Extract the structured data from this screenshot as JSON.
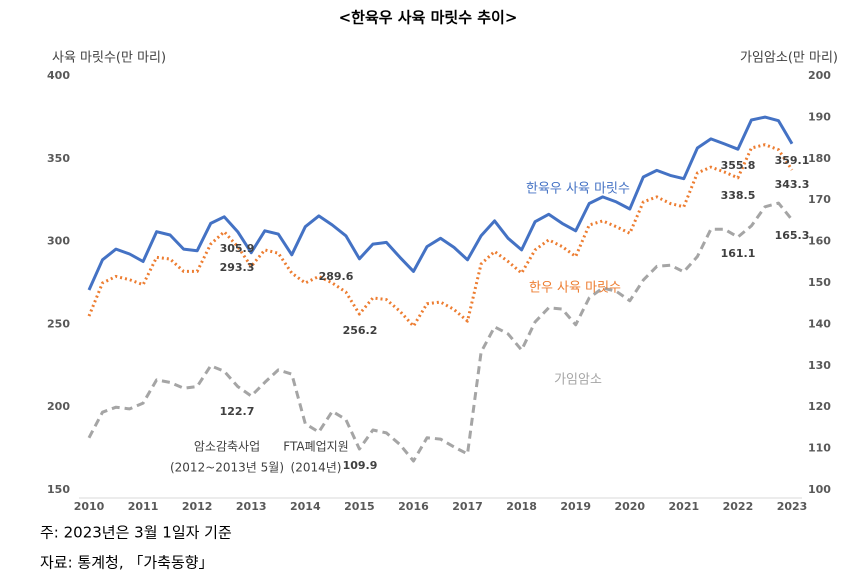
{
  "chart_data": {
    "type": "line",
    "title": "<한육우 사육 마릿수 추이>",
    "ylabel": "사육 마릿수(만 마리)",
    "y2label": "가임암소(만 마리)",
    "x": [
      2010,
      2010.25,
      2010.5,
      2010.75,
      2011,
      2011.25,
      2011.5,
      2011.75,
      2012,
      2012.25,
      2012.5,
      2012.75,
      2013,
      2013.25,
      2013.5,
      2013.75,
      2014,
      2014.25,
      2014.5,
      2014.75,
      2015,
      2015.25,
      2015.5,
      2015.75,
      2016,
      2016.25,
      2016.5,
      2016.75,
      2017,
      2017.25,
      2017.5,
      2017.75,
      2018,
      2018.25,
      2018.5,
      2018.75,
      2019,
      2019.25,
      2019.5,
      2019.75,
      2020,
      2020.25,
      2020.5,
      2020.75,
      2021,
      2021.25,
      2021.5,
      2021.75,
      2022,
      2022.25,
      2022.5,
      2022.75,
      2023
    ],
    "xlim": [
      2010,
      2023
    ],
    "xticks": [
      2010,
      2011,
      2012,
      2013,
      2014,
      2015,
      2016,
      2017,
      2018,
      2019,
      2020,
      2021,
      2022,
      2023
    ],
    "ylim": [
      150,
      400
    ],
    "yticks": [
      150,
      200,
      250,
      300,
      350,
      400
    ],
    "y2lim": [
      100,
      200
    ],
    "y2ticks": [
      100,
      110,
      120,
      130,
      140,
      150,
      160,
      170,
      180,
      190,
      200
    ],
    "grid": false,
    "series": [
      {
        "name": "한육우 사육 마릿수",
        "color": "#4472c4",
        "style": "solid",
        "values": [
          270.8,
          289,
          295.5,
          292.5,
          288,
          306,
          304,
          295.5,
          294.5,
          311,
          315,
          306,
          293.3,
          306.5,
          304.5,
          292,
          309,
          315.5,
          310,
          303.5,
          289.6,
          298.5,
          299.5,
          290.5,
          282,
          297,
          302,
          296.5,
          289,
          303.5,
          312.5,
          302,
          295,
          312,
          316.5,
          311,
          306.5,
          323,
          327,
          324,
          319.7,
          339,
          343,
          340,
          338,
          356.5,
          362,
          359,
          355.8,
          373.4,
          375.2,
          373,
          359.1
        ]
      },
      {
        "name": "한우 사육 마릿수",
        "color": "#ed7d31",
        "style": "dotted",
        "values": [
          255,
          275,
          279,
          277,
          274,
          290.5,
          289.5,
          282,
          282,
          298.5,
          305.9,
          297,
          285,
          295,
          293,
          281,
          275,
          279,
          275,
          269.5,
          256.2,
          266,
          265,
          258,
          249,
          262.5,
          263.5,
          259,
          252,
          286.5,
          294,
          288,
          281,
          295,
          301,
          297,
          291,
          310,
          312.5,
          309,
          305,
          324,
          327,
          323,
          321,
          341.5,
          345,
          342,
          338.5,
          356.5,
          358.5,
          355.5,
          343.3
        ]
      },
      {
        "name": "가임암소",
        "color": "#a5a5a5",
        "style": "dashed",
        "axis": "y2",
        "values": [
          112.6,
          118.8,
          120,
          119.6,
          121,
          126.6,
          126,
          124.6,
          125,
          130,
          128.7,
          125,
          122.7,
          126,
          129,
          128,
          116,
          114,
          119,
          117,
          109.9,
          114.5,
          113.8,
          111,
          107,
          112.6,
          112.3,
          110.4,
          108.7,
          133.3,
          139.4,
          137.7,
          133.8,
          140.6,
          144,
          143.7,
          139.9,
          146.4,
          148.8,
          148,
          145.7,
          150.7,
          154,
          154.3,
          152.7,
          156.4,
          163,
          163,
          161.1,
          163.8,
          168.4,
          169.3,
          165.3
        ]
      }
    ],
    "annotations": [
      "암소감축사업",
      "(2012~2013년 5월)",
      "FTA폐업지원",
      "(2014년)"
    ],
    "notes": [
      "주: 2023년은 3월 1일자 기준",
      "자료: 통계청, 「가축동향」"
    ]
  }
}
